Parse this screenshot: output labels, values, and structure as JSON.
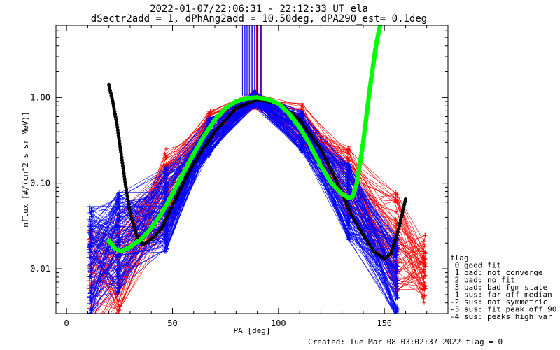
{
  "title_line1": "2022-01-07/22:06:31 - 22:12:33 UT ela",
  "title_line2": "dSectr2add = 1, dPhAng2add = 10.50deg, dPA290_est=   0.1deg",
  "footer": "Created: Tue Mar 08 03:02:37 2022   flag = 0",
  "chart_data": {
    "type": "line",
    "xlabel": "PA [deg]",
    "ylabel": "nflux [#/(cm^2 s sr MeV)]",
    "xlim": [
      -5,
      180
    ],
    "ylim": [
      0.003,
      7
    ],
    "yscale": "log",
    "x_ticks": [
      0,
      50,
      100,
      150
    ],
    "x_tick_labels": [
      "0",
      "50",
      "100",
      "150"
    ],
    "y_ticks": [
      0.01,
      0.1,
      1.0
    ],
    "y_tick_labels": [
      "0.01",
      "0.10",
      "1.00"
    ],
    "grid": false,
    "series": [
      {
        "name": "red spectra",
        "color": "#ff0000",
        "pa": [
          11.3,
          24.4,
          46.9,
          67.5,
          88.9,
          111.1,
          133.1,
          155.6,
          168.8
        ],
        "median_flux": [
          0.006,
          0.012,
          0.08,
          0.45,
          0.95,
          0.5,
          0.1,
          0.02,
          0.01
        ]
      },
      {
        "name": "blue spectra",
        "color": "#0000ff",
        "pa": [
          11.3,
          24.4,
          46.9,
          67.5,
          88.9,
          111.1,
          133.1,
          155.6
        ],
        "median_flux": [
          0.012,
          0.02,
          0.05,
          0.35,
          0.95,
          0.4,
          0.06,
          0.008
        ]
      },
      {
        "name": "black fit",
        "color": "#000000",
        "x": [
          20,
          22,
          24,
          26,
          28,
          30,
          33,
          36,
          40,
          45,
          50,
          55,
          60,
          70,
          80,
          90,
          100,
          110,
          120,
          125,
          130,
          135,
          140,
          145,
          150,
          153,
          156,
          158,
          160
        ],
        "y": [
          1.4,
          0.85,
          0.45,
          0.2,
          0.09,
          0.045,
          0.025,
          0.019,
          0.022,
          0.03,
          0.055,
          0.1,
          0.17,
          0.4,
          0.75,
          0.95,
          0.85,
          0.55,
          0.25,
          0.14,
          0.075,
          0.04,
          0.025,
          0.016,
          0.013,
          0.015,
          0.025,
          0.04,
          0.065
        ]
      },
      {
        "name": "green fit",
        "color": "#00ff00",
        "x": [
          20,
          23,
          26,
          30,
          35,
          40,
          45,
          50,
          55,
          60,
          65,
          70,
          75,
          80,
          85,
          90,
          95,
          100,
          105,
          110,
          115,
          120,
          125,
          130,
          133,
          135,
          137,
          140,
          143,
          146,
          148
        ],
        "y": [
          0.021,
          0.017,
          0.016,
          0.018,
          0.022,
          0.03,
          0.045,
          0.075,
          0.13,
          0.22,
          0.36,
          0.55,
          0.75,
          0.9,
          0.98,
          1.0,
          0.96,
          0.85,
          0.65,
          0.45,
          0.28,
          0.16,
          0.1,
          0.075,
          0.068,
          0.07,
          0.1,
          0.3,
          1.2,
          4.0,
          7.0
        ]
      }
    ],
    "fit_marker_x": [
      90.0
    ],
    "legend": {
      "placement": "right",
      "entries": [
        "flag",
        " 0 good fit",
        " 1 bad: not converge",
        " 2 bad: no fit",
        " 3 bad: bad fgm state",
        "-1 sus: far off median",
        "-2 sus: not symmetric",
        "-3 sus: fit peak off 90",
        "-4 sus: peaks high var"
      ]
    }
  }
}
